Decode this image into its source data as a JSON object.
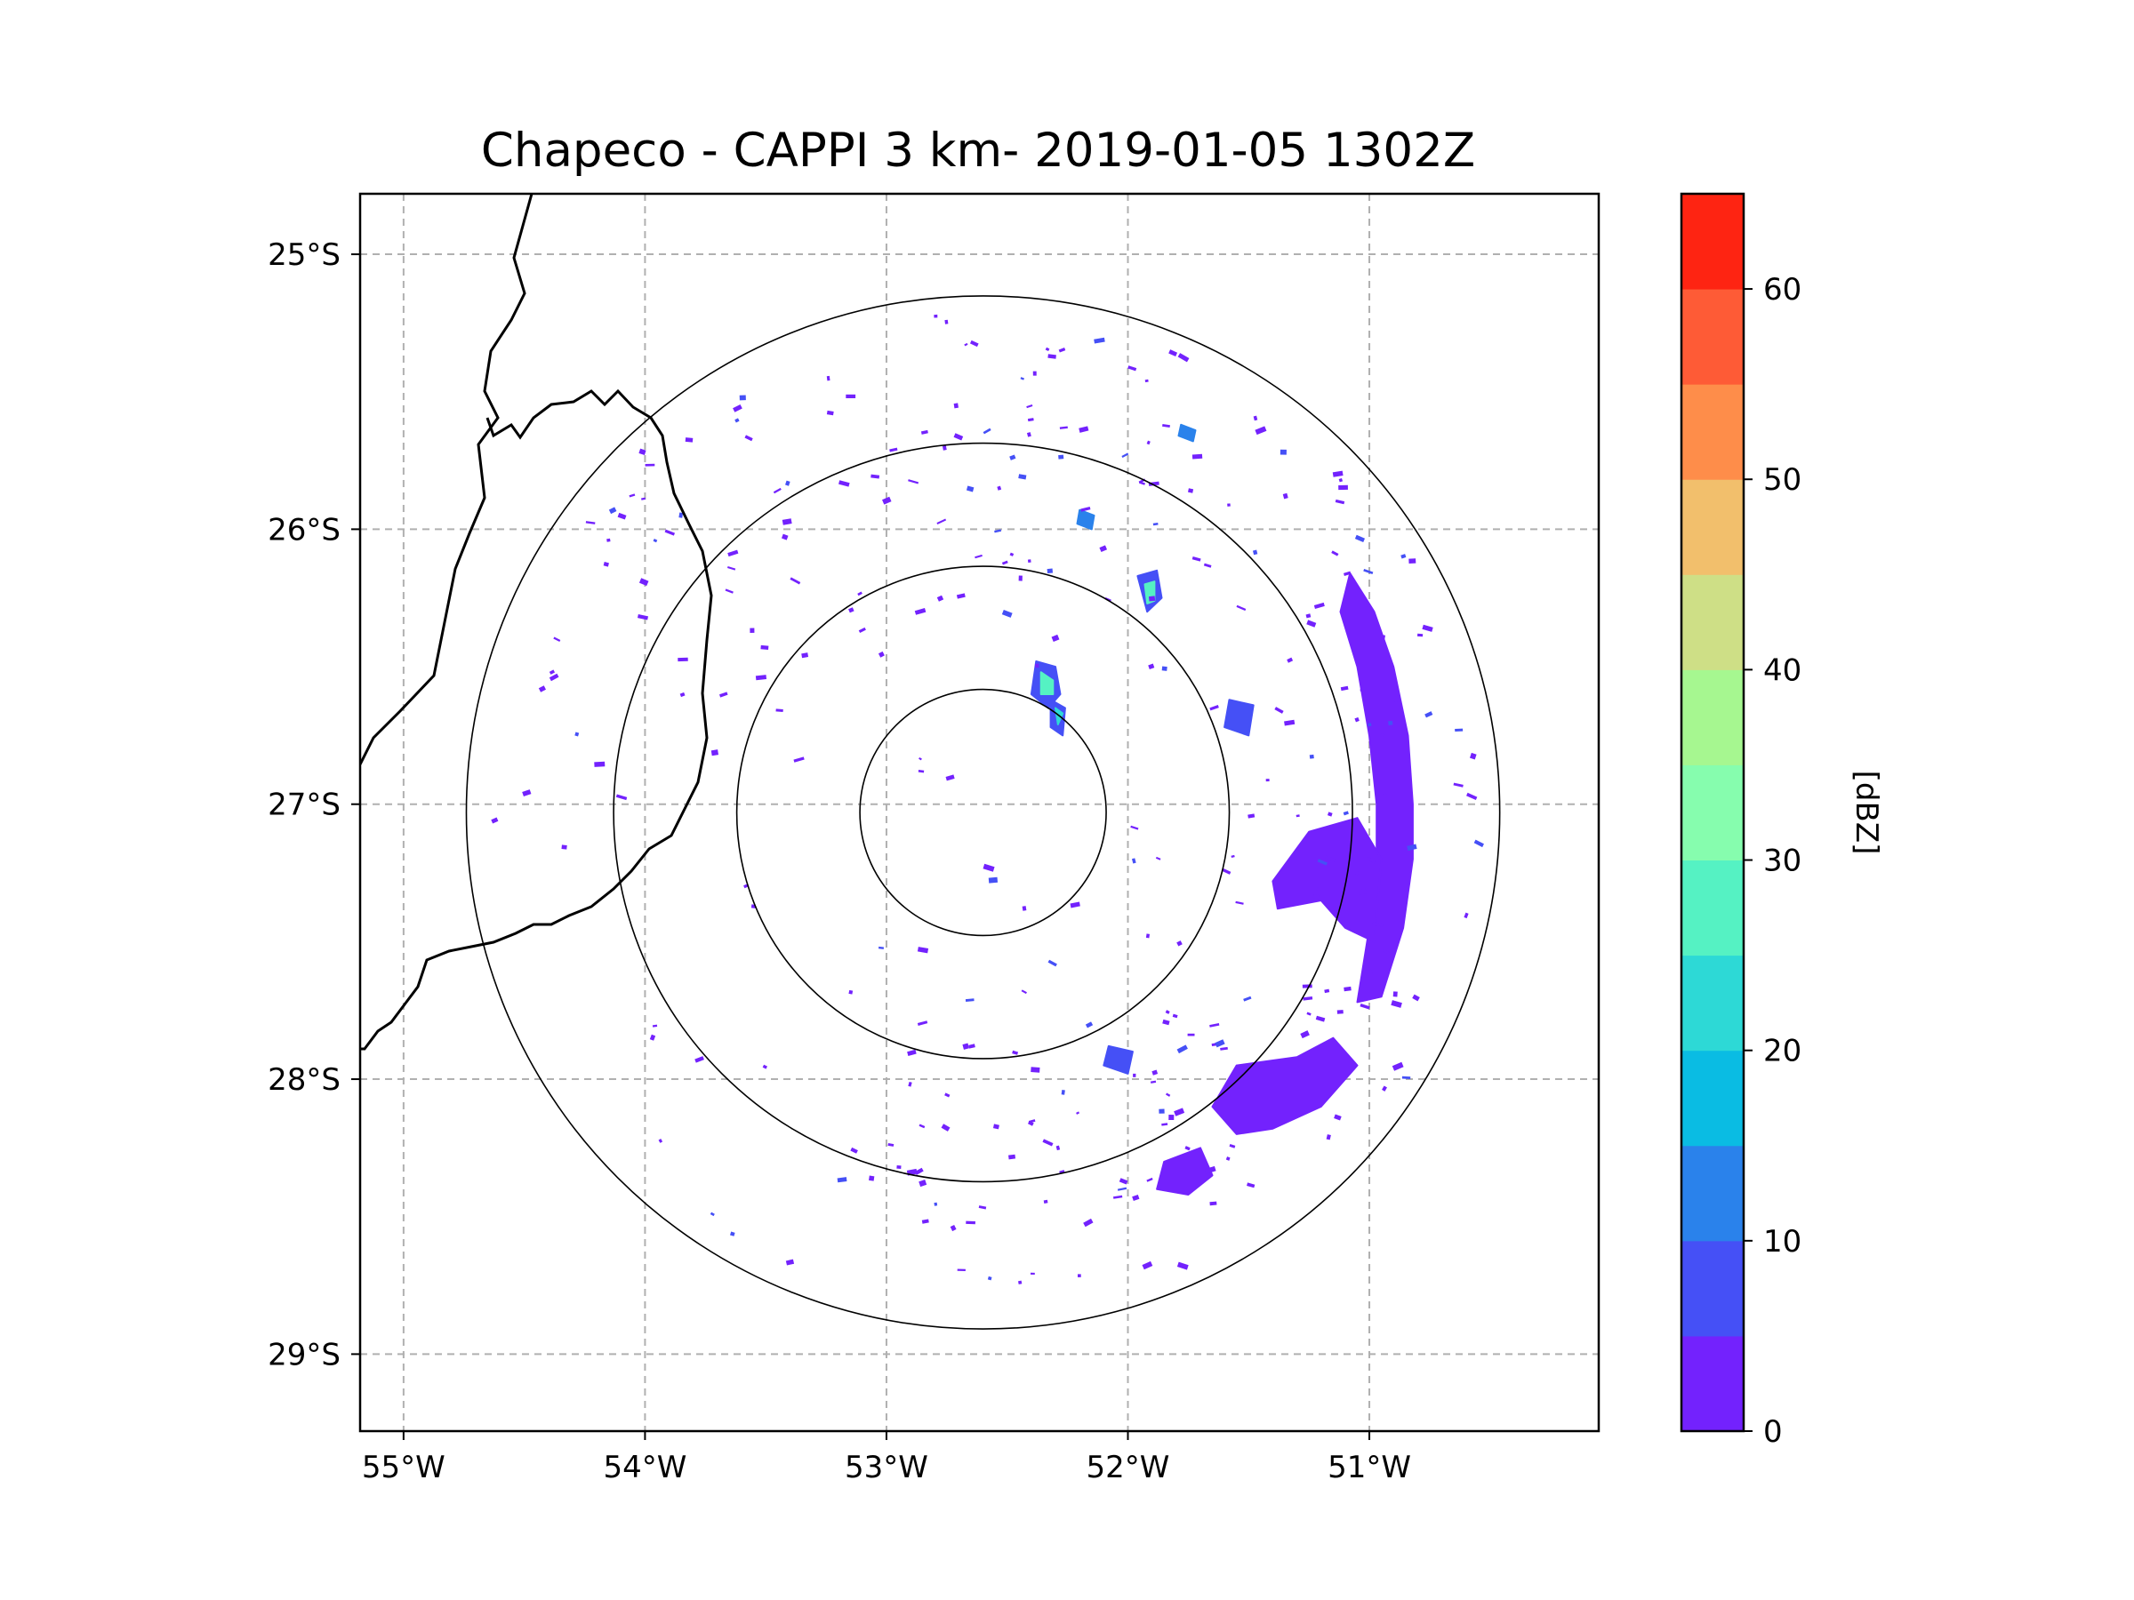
{
  "chart_data": {
    "type": "heatmap",
    "title": "Chapeco - CAPPI 3 km- 2019-01-05 1302Z",
    "x_axis": {
      "range_deg_east": [
        -55.18,
        -50.05
      ],
      "tick_values": [
        -55,
        -54,
        -53,
        -52,
        -51
      ],
      "tick_labels": [
        "55°W",
        "54°W",
        "53°W",
        "52°W",
        "51°W"
      ]
    },
    "y_axis": {
      "range_deg_north": [
        -29.28,
        -24.78
      ],
      "tick_values": [
        -25,
        -26,
        -27,
        -28,
        -29
      ],
      "tick_labels": [
        "25°S",
        "26°S",
        "27°S",
        "28°S",
        "29°S"
      ]
    },
    "gridlines": "dashed",
    "radar": {
      "site": "Chapeco",
      "center_lon": -52.6,
      "center_lat": -27.03,
      "range_rings_deg": [
        0.51,
        1.02,
        1.53,
        2.14
      ]
    },
    "colorbar": {
      "label": "[dBZ]",
      "bounds": [
        0,
        5,
        10,
        15,
        20,
        25,
        30,
        35,
        40,
        45,
        50,
        55,
        60,
        65
      ],
      "colors": [
        "#7322fd",
        "#4550f6",
        "#2a82eb",
        "#0abce3",
        "#2dd9d6",
        "#55f2c3",
        "#86fdae",
        "#a6f790",
        "#cedf86",
        "#f2bf6c",
        "#fe8d4a",
        "#fe5b36",
        "#fe2412"
      ],
      "tick_values": [
        0,
        10,
        20,
        30,
        40,
        50,
        60
      ],
      "tick_labels": [
        "0",
        "10",
        "20",
        "30",
        "40",
        "50",
        "60"
      ]
    },
    "echo_regions": [
      {
        "name": "eastern-arc-band",
        "dbz": 2,
        "points": [
          [
            -51.08,
            -26.16
          ],
          [
            -50.98,
            -26.3
          ],
          [
            -50.9,
            -26.5
          ],
          [
            -50.84,
            -26.75
          ],
          [
            -50.82,
            -27.0
          ],
          [
            -50.82,
            -27.2
          ],
          [
            -50.86,
            -27.45
          ],
          [
            -50.95,
            -27.7
          ],
          [
            -51.05,
            -27.72
          ],
          [
            -51.0,
            -27.45
          ],
          [
            -50.97,
            -27.2
          ],
          [
            -50.97,
            -27.0
          ],
          [
            -51.0,
            -26.75
          ],
          [
            -51.05,
            -26.5
          ],
          [
            -51.12,
            -26.3
          ]
        ]
      },
      {
        "name": "east-cluster",
        "dbz": 3,
        "points": [
          [
            -51.25,
            -27.1
          ],
          [
            -51.05,
            -27.05
          ],
          [
            -50.95,
            -27.2
          ],
          [
            -50.98,
            -27.5
          ],
          [
            -51.1,
            -27.45
          ],
          [
            -51.2,
            -27.35
          ],
          [
            -51.38,
            -27.38
          ],
          [
            -51.4,
            -27.28
          ]
        ]
      },
      {
        "name": "southeast-cluster",
        "dbz": 3,
        "points": [
          [
            -51.55,
            -27.95
          ],
          [
            -51.3,
            -27.92
          ],
          [
            -51.15,
            -27.85
          ],
          [
            -51.05,
            -27.95
          ],
          [
            -51.2,
            -28.1
          ],
          [
            -51.4,
            -28.18
          ],
          [
            -51.55,
            -28.2
          ],
          [
            -51.65,
            -28.1
          ]
        ]
      },
      {
        "name": "south-cluster",
        "dbz": 2,
        "points": [
          [
            -51.85,
            -28.3
          ],
          [
            -51.7,
            -28.25
          ],
          [
            -51.65,
            -28.35
          ],
          [
            -51.75,
            -28.42
          ],
          [
            -51.88,
            -28.4
          ]
        ]
      },
      {
        "name": "cell-a-outer",
        "dbz": 8,
        "points": [
          [
            -52.38,
            -26.48
          ],
          [
            -52.3,
            -26.5
          ],
          [
            -52.28,
            -26.6
          ],
          [
            -52.33,
            -26.65
          ],
          [
            -52.4,
            -26.6
          ]
        ]
      },
      {
        "name": "cell-a-core",
        "dbz": 27,
        "points": [
          [
            -52.36,
            -26.52
          ],
          [
            -52.31,
            -26.55
          ],
          [
            -52.31,
            -26.6
          ],
          [
            -52.36,
            -26.6
          ]
        ]
      },
      {
        "name": "cell-b-outer",
        "dbz": 8,
        "points": [
          [
            -52.32,
            -26.62
          ],
          [
            -52.26,
            -26.65
          ],
          [
            -52.27,
            -26.75
          ],
          [
            -52.32,
            -26.72
          ]
        ]
      },
      {
        "name": "cell-b-core",
        "dbz": 22,
        "points": [
          [
            -52.3,
            -26.65
          ],
          [
            -52.27,
            -26.67
          ],
          [
            -52.29,
            -26.71
          ]
        ]
      },
      {
        "name": "cell-c-outer",
        "dbz": 8,
        "points": [
          [
            -51.96,
            -26.17
          ],
          [
            -51.88,
            -26.15
          ],
          [
            -51.86,
            -26.25
          ],
          [
            -51.92,
            -26.3
          ]
        ]
      },
      {
        "name": "cell-c-core",
        "dbz": 27,
        "points": [
          [
            -51.93,
            -26.2
          ],
          [
            -51.89,
            -26.19
          ],
          [
            -51.89,
            -26.26
          ],
          [
            -51.92,
            -26.27
          ]
        ]
      },
      {
        "name": "cell-d",
        "dbz": 12,
        "points": [
          [
            -52.2,
            -25.93
          ],
          [
            -52.14,
            -25.95
          ],
          [
            -52.15,
            -26.0
          ],
          [
            -52.21,
            -25.98
          ]
        ]
      },
      {
        "name": "cell-e",
        "dbz": 12,
        "points": [
          [
            -51.78,
            -25.62
          ],
          [
            -51.72,
            -25.64
          ],
          [
            -51.73,
            -25.68
          ],
          [
            -51.79,
            -25.66
          ]
        ]
      },
      {
        "name": "cell-f",
        "dbz": 8,
        "points": [
          [
            -51.58,
            -26.62
          ],
          [
            -51.48,
            -26.64
          ],
          [
            -51.5,
            -26.75
          ],
          [
            -51.6,
            -26.72
          ]
        ]
      },
      {
        "name": "cell-g",
        "dbz": 8,
        "points": [
          [
            -52.08,
            -27.88
          ],
          [
            -51.98,
            -27.9
          ],
          [
            -52.0,
            -27.98
          ],
          [
            -52.1,
            -27.95
          ]
        ]
      }
    ]
  }
}
